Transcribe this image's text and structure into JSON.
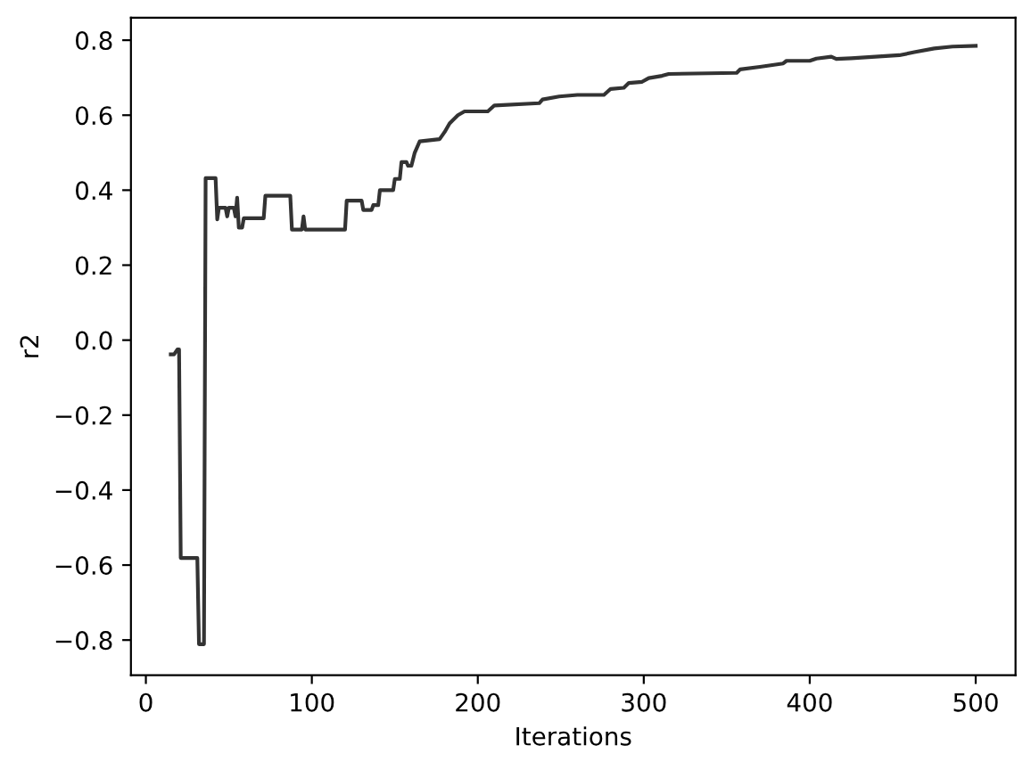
{
  "chart_data": {
    "type": "line",
    "xlabel": "Iterations",
    "ylabel": "r2",
    "xlim": [
      -9,
      524
    ],
    "ylim": [
      -0.894,
      0.86
    ],
    "xticks": [
      0,
      100,
      200,
      300,
      400,
      500
    ],
    "yticks": [
      {
        "value": -0.8,
        "label": "−0.8"
      },
      {
        "value": -0.6,
        "label": "−0.6"
      },
      {
        "value": -0.4,
        "label": "−0.4"
      },
      {
        "value": -0.2,
        "label": "−0.2"
      },
      {
        "value": 0,
        "label": "0.0"
      },
      {
        "value": 0.2,
        "label": "0.2"
      },
      {
        "value": 0.4,
        "label": "0.4"
      },
      {
        "value": 0.6,
        "label": "0.6"
      },
      {
        "value": 0.8,
        "label": "0.8"
      }
    ],
    "grid": false,
    "marker": "none",
    "line_style": "solid",
    "series": [
      {
        "color": "#333333",
        "x": [
          15,
          17,
          19,
          20,
          21,
          31,
          32,
          35,
          36,
          42,
          43,
          44,
          48,
          49,
          50,
          53,
          54,
          55,
          56,
          58,
          59,
          71,
          72,
          87,
          88,
          94,
          95,
          96,
          120,
          121,
          130,
          131,
          136,
          137,
          140,
          141,
          149,
          150,
          153,
          154,
          157,
          158,
          160,
          162,
          165,
          177,
          180,
          183,
          188,
          192,
          206,
          210,
          237,
          239,
          249,
          260,
          276,
          280,
          288,
          291,
          299,
          303,
          311,
          315,
          356,
          358,
          370,
          384,
          386,
          400,
          404,
          413,
          416,
          425,
          454,
          463,
          475,
          486,
          500
        ],
        "values": [
          -0.038,
          -0.038,
          -0.025,
          -0.025,
          -0.581,
          -0.581,
          -0.811,
          -0.811,
          0.432,
          0.432,
          0.322,
          0.353,
          0.353,
          0.33,
          0.353,
          0.353,
          0.33,
          0.38,
          0.3,
          0.3,
          0.325,
          0.325,
          0.385,
          0.385,
          0.295,
          0.295,
          0.33,
          0.295,
          0.295,
          0.372,
          0.372,
          0.347,
          0.347,
          0.36,
          0.36,
          0.4,
          0.4,
          0.43,
          0.43,
          0.475,
          0.475,
          0.465,
          0.465,
          0.5,
          0.53,
          0.536,
          0.555,
          0.578,
          0.6,
          0.61,
          0.61,
          0.626,
          0.632,
          0.642,
          0.65,
          0.654,
          0.654,
          0.67,
          0.673,
          0.686,
          0.689,
          0.699,
          0.705,
          0.71,
          0.713,
          0.722,
          0.729,
          0.738,
          0.745,
          0.745,
          0.751,
          0.756,
          0.75,
          0.752,
          0.76,
          0.768,
          0.778,
          0.783,
          0.785
        ]
      }
    ]
  }
}
